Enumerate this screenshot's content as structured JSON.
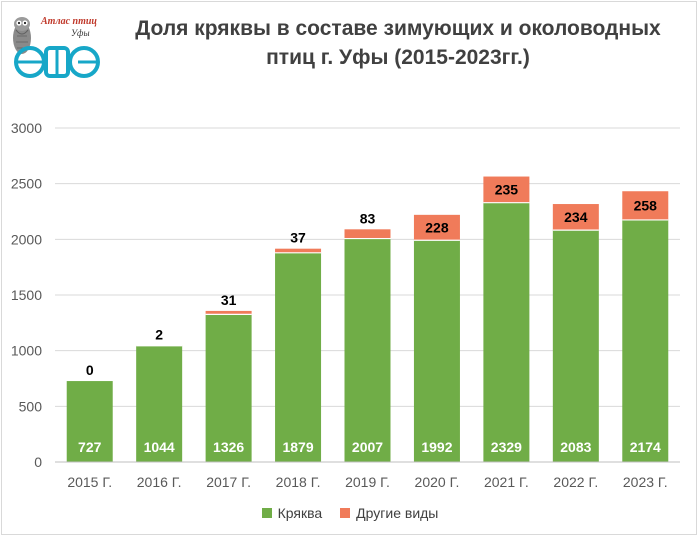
{
  "title_line1": "Доля кряквы в составе зимующих и околоводных",
  "title_line2": "птиц г. Уфы (2015-2023гг.)",
  "logo": {
    "line1": "Атлас птиц",
    "line2": "Уфы"
  },
  "colors": {
    "mallard": "#70AD47",
    "other": "#F07B5A",
    "grid": "#d9d9d9",
    "axis_text": "#595959"
  },
  "chart_data": {
    "type": "bar",
    "stacked": true,
    "title": "Доля кряквы в составе зимующих и околоводных птиц г. Уфы (2015-2023гг.)",
    "categories": [
      "2015 Г.",
      "2016 Г.",
      "2017 Г.",
      "2018 Г.",
      "2019 Г.",
      "2020 Г.",
      "2021 Г.",
      "2022 Г.",
      "2023 Г."
    ],
    "series": [
      {
        "name": "Кряква",
        "values": [
          727,
          1044,
          1326,
          1879,
          2007,
          1992,
          2329,
          2083,
          2174
        ]
      },
      {
        "name": "Другие виды",
        "values": [
          0,
          2,
          31,
          37,
          83,
          228,
          235,
          234,
          258
        ]
      }
    ],
    "ylim": [
      0,
      3000
    ],
    "yticks": [
      0,
      500,
      1000,
      1500,
      2000,
      2500,
      3000
    ],
    "xlabel": "",
    "ylabel": "",
    "grid": true,
    "legend": "bottom"
  }
}
